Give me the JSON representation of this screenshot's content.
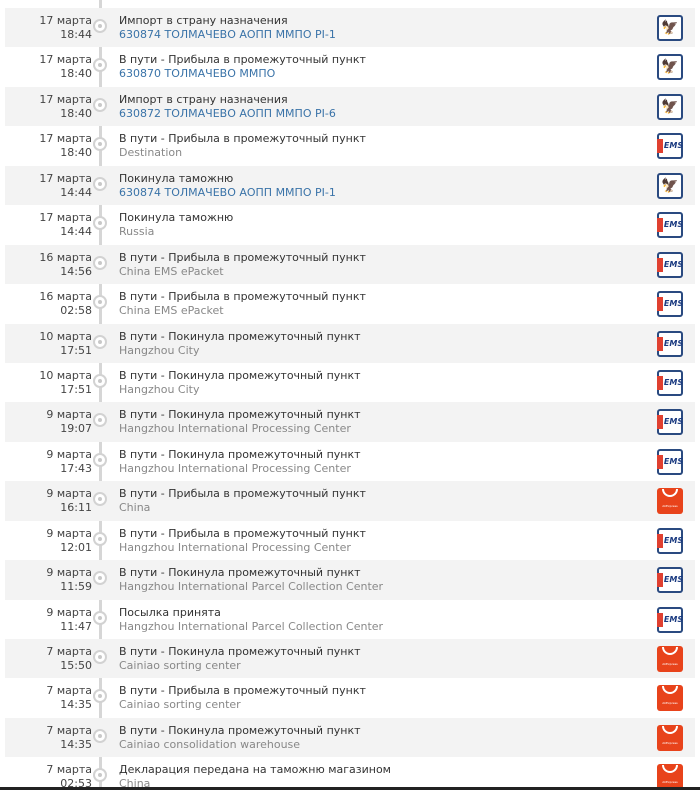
{
  "colors": {
    "link": "#3a73a8",
    "ems": "#2a4a80",
    "aliexpress": "#e8431b"
  },
  "events": [
    {
      "date": "17 марта",
      "time": "18:44",
      "status": "Импорт в страну назначения",
      "location": "630874 ТОЛМАЧЕВО АОПП ММПО PI-1",
      "ru": true,
      "icon": "russian-post"
    },
    {
      "date": "17 марта",
      "time": "18:40",
      "status": "В пути - Прибыла в промежуточный пункт",
      "location": "630870 ТОЛМАЧЕВО ММПО",
      "ru": true,
      "icon": "russian-post"
    },
    {
      "date": "17 марта",
      "time": "18:40",
      "status": "Импорт в страну назначения",
      "location": "630872 ТОЛМАЧЕВО АОПП ММПО PI-6",
      "ru": true,
      "icon": "russian-post"
    },
    {
      "date": "17 марта",
      "time": "18:40",
      "status": "В пути - Прибыла в промежуточный пункт",
      "location": "Destination",
      "ru": false,
      "icon": "ems"
    },
    {
      "date": "17 марта",
      "time": "14:44",
      "status": "Покинула таможню",
      "location": "630874 ТОЛМАЧЕВО АОПП ММПО PI-1",
      "ru": true,
      "icon": "russian-post"
    },
    {
      "date": "17 марта",
      "time": "14:44",
      "status": "Покинула таможню",
      "location": "Russia",
      "ru": false,
      "icon": "ems"
    },
    {
      "date": "16 марта",
      "time": "14:56",
      "status": "В пути - Прибыла в промежуточный пункт",
      "location": "China EMS ePacket",
      "ru": false,
      "icon": "ems"
    },
    {
      "date": "16 марта",
      "time": "02:58",
      "status": "В пути - Прибыла в промежуточный пункт",
      "location": "China EMS ePacket",
      "ru": false,
      "icon": "ems"
    },
    {
      "date": "10 марта",
      "time": "17:51",
      "status": "В пути - Покинула промежуточный пункт",
      "location": "Hangzhou City",
      "ru": false,
      "icon": "ems"
    },
    {
      "date": "10 марта",
      "time": "17:51",
      "status": "В пути - Покинула промежуточный пункт",
      "location": "Hangzhou City",
      "ru": false,
      "icon": "ems"
    },
    {
      "date": "9 марта",
      "time": "19:07",
      "status": "В пути - Покинула промежуточный пункт",
      "location": "Hangzhou International Processing Center",
      "ru": false,
      "icon": "ems"
    },
    {
      "date": "9 марта",
      "time": "17:43",
      "status": "В пути - Покинула промежуточный пункт",
      "location": "Hangzhou International Processing Center",
      "ru": false,
      "icon": "ems"
    },
    {
      "date": "9 марта",
      "time": "16:11",
      "status": "В пути - Прибыла в промежуточный пункт",
      "location": "China",
      "ru": false,
      "icon": "aliexpress"
    },
    {
      "date": "9 марта",
      "time": "12:01",
      "status": "В пути - Прибыла в промежуточный пункт",
      "location": "Hangzhou International Processing Center",
      "ru": false,
      "icon": "ems"
    },
    {
      "date": "9 марта",
      "time": "11:59",
      "status": "В пути - Покинула промежуточный пункт",
      "location": "Hangzhou International Parcel Collection Center",
      "ru": false,
      "icon": "ems"
    },
    {
      "date": "9 марта",
      "time": "11:47",
      "status": "Посылка принята",
      "location": "Hangzhou International Parcel Collection Center",
      "ru": false,
      "icon": "ems"
    },
    {
      "date": "7 марта",
      "time": "15:50",
      "status": "В пути - Покинула промежуточный пункт",
      "location": "Cainiao sorting center",
      "ru": false,
      "icon": "aliexpress"
    },
    {
      "date": "7 марта",
      "time": "14:35",
      "status": "В пути - Прибыла в промежуточный пункт",
      "location": "Cainiao sorting center",
      "ru": false,
      "icon": "aliexpress"
    },
    {
      "date": "7 марта",
      "time": "14:35",
      "status": "В пути - Покинула промежуточный пункт",
      "location": "Cainiao consolidation warehouse",
      "ru": false,
      "icon": "aliexpress"
    },
    {
      "date": "7 марта",
      "time": "02:53",
      "status": "Декларация передана на таможню магазином",
      "location": "China",
      "ru": false,
      "icon": "aliexpress"
    }
  ],
  "icon_labels": {
    "ems": "EMS",
    "aliexpress": "AliExpress",
    "russian-post": "🦅"
  }
}
